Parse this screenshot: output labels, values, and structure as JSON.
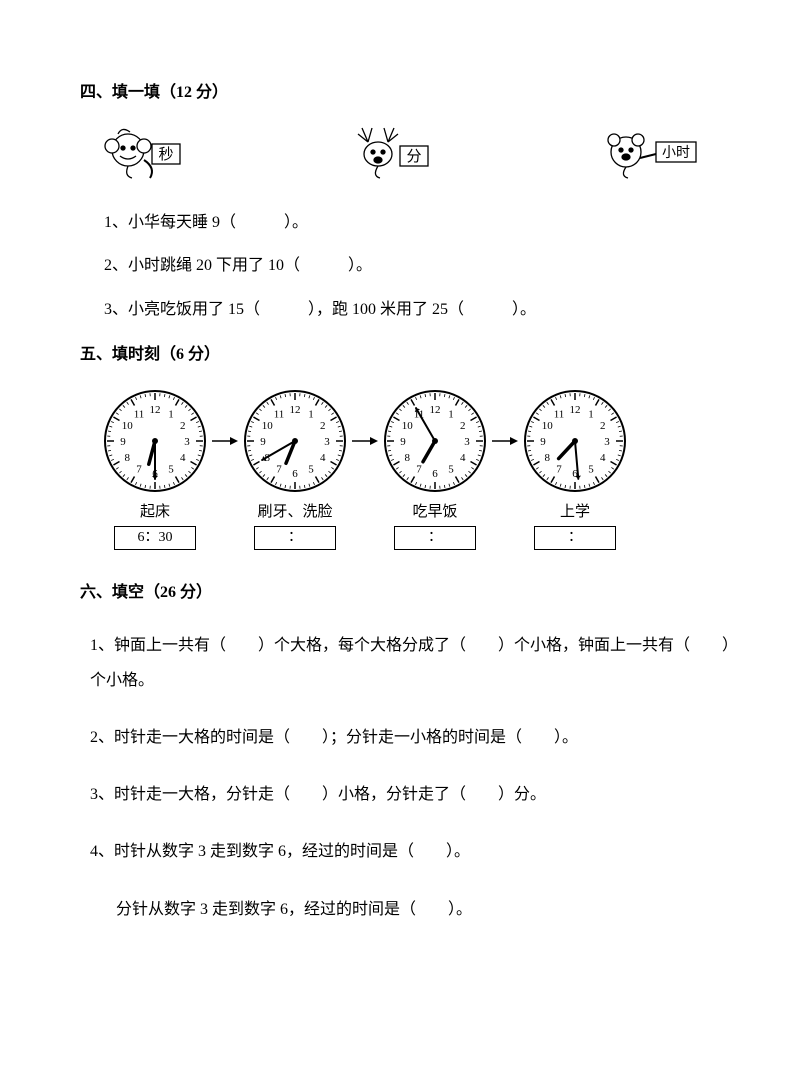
{
  "section4": {
    "title": "四、填一填（12 分）",
    "animals": {
      "a1_label": "秒",
      "a2_label": "分",
      "a3_label": "小时"
    },
    "q1": "1、小华每天睡 9（　　　）。",
    "q2": "2、小时跳绳 20 下用了 10（　　　）。",
    "q3": "3、小亮吃饭用了 15（　　　），跑 100 米用了 25（　　　）。"
  },
  "section5": {
    "title": "五、填时刻（6 分）",
    "clocks": [
      {
        "label": "起床",
        "hour_angle": 195,
        "minute_angle": 180,
        "time": "6：30"
      },
      {
        "label": "刷牙、洗脸",
        "hour_angle": 202,
        "minute_angle": 240,
        "time": "："
      },
      {
        "label": "吃早饭",
        "hour_angle": 210,
        "minute_angle": 330,
        "time": "："
      },
      {
        "label": "上学",
        "hour_angle": 223,
        "minute_angle": 175,
        "time": "："
      }
    ]
  },
  "section6": {
    "title": "六、填空（26 分）",
    "q1": "1、钟面上一共有（　　）个大格，每个大格分成了（　　）个小格，钟面上一共有（　　）个小格。",
    "q2": "2、时针走一大格的时间是（　　）；分针走一小格的时间是（　　）。",
    "q3": "3、时针走一大格，分针走（　　）小格，分针走了（　　）分。",
    "q4a": "4、时针从数字 3 走到数字 6，经过的时间是（　　）。",
    "q4b": "分针从数字 3 走到数字 6，经过的时间是（　　）。"
  },
  "style": {
    "fg": "#000000",
    "bg": "#ffffff",
    "clock_radius": 50,
    "clock_stroke": "#000000"
  }
}
